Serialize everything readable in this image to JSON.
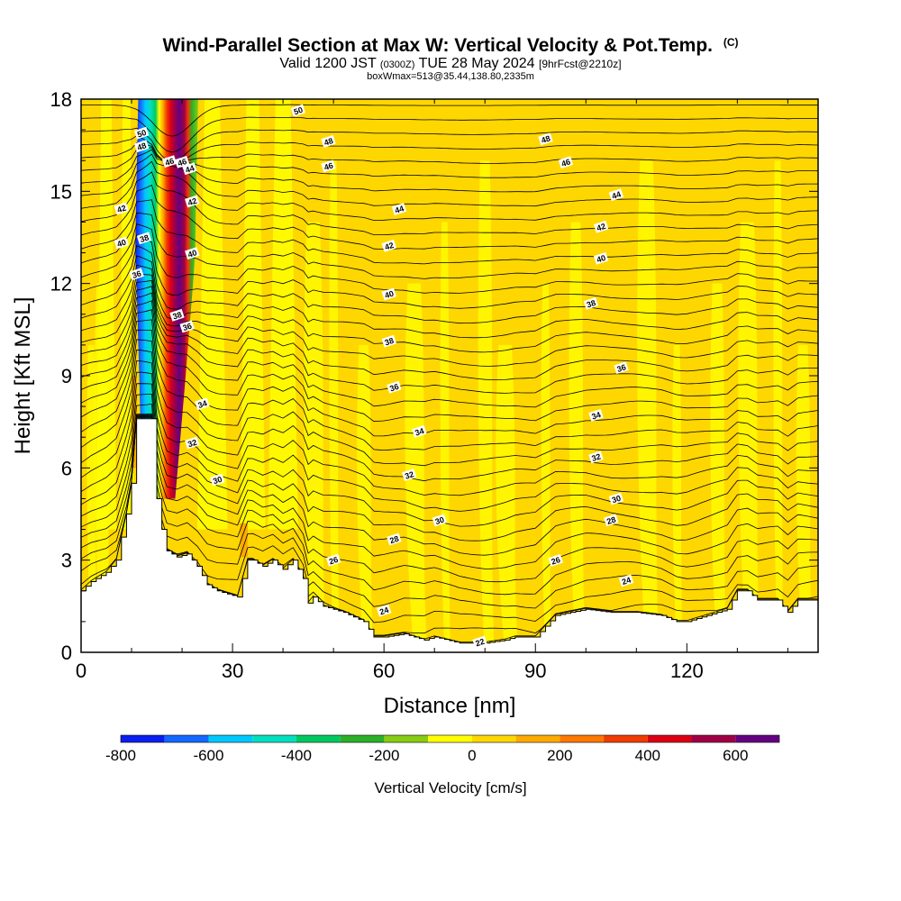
{
  "header": {
    "title_main": "Wind-Parallel Section at Max W: Vertical Velocity & Pot.Temp.",
    "title_c": "(C)",
    "valid_a": "Valid 1200 JST",
    "valid_b": "(0300Z)",
    "valid_c": "TUE 28 May 2024",
    "valid_d": "[9hrFcst@2210z]",
    "box_line": "boxWmax=513@35.44,138.80,2335m"
  },
  "chart_data": {
    "type": "heatmap",
    "xlabel": "Distance [nm]",
    "ylabel": "Height [Kft MSL]",
    "xlim": [
      0,
      146
    ],
    "ylim": [
      0,
      18
    ],
    "x_ticks": [
      0,
      30,
      60,
      90,
      120
    ],
    "y_ticks": [
      0,
      3,
      6,
      9,
      12,
      15,
      18
    ],
    "colorbar": {
      "label": "Vertical Velocity [cm/s]",
      "tick_values": [
        -800,
        -600,
        -400,
        -200,
        0,
        200,
        400,
        600
      ],
      "levels": [
        -800,
        -700,
        -600,
        -500,
        -400,
        -300,
        -200,
        -100,
        0,
        100,
        200,
        300,
        400,
        500,
        600,
        700
      ],
      "colors": [
        "#0a1ef0",
        "#1468ff",
        "#00c8ff",
        "#00e0c0",
        "#00c860",
        "#2cb028",
        "#88cc14",
        "#ffff00",
        "#ffd700",
        "#ffaa00",
        "#ff7800",
        "#f03c00",
        "#dc0014",
        "#a00046",
        "#640082"
      ]
    },
    "background_color": "#ffd700",
    "updraft_core": {
      "bottom_km_kft": 5,
      "top_kft": 18,
      "axis_points": [
        [
          17,
          5
        ],
        [
          17.8,
          9
        ],
        [
          18.3,
          12
        ],
        [
          18.6,
          15
        ],
        [
          19,
          18
        ]
      ],
      "max_w": 513
    },
    "terrain": {
      "x": [
        0,
        2,
        5,
        7,
        9,
        10.5,
        11,
        12,
        14,
        15,
        16,
        17,
        18,
        19,
        21,
        23,
        25,
        27,
        31,
        33,
        34,
        36,
        38,
        40,
        42,
        44,
        45,
        46,
        48,
        52,
        56,
        58,
        60,
        64,
        68,
        70,
        75,
        80,
        84,
        86,
        88,
        90,
        94,
        100,
        105,
        110,
        115,
        118,
        120,
        124,
        128,
        130,
        132,
        134,
        138,
        140,
        142,
        146
      ],
      "y": [
        2,
        2.3,
        2.6,
        3,
        4.5,
        6,
        7.6,
        7.6,
        7.6,
        5,
        4,
        3.3,
        3.2,
        3.1,
        3.2,
        2.8,
        2.2,
        2,
        1.8,
        3.0,
        3.0,
        2.8,
        3.0,
        2.7,
        3.0,
        2.4,
        1.6,
        1.8,
        1.5,
        1.3,
        1,
        0.5,
        0.5,
        0.6,
        0.4,
        0.5,
        0.3,
        0.3,
        0.4,
        0.5,
        0.5,
        0.5,
        1.2,
        1.4,
        1.3,
        1.3,
        1.2,
        1.0,
        1.0,
        1.2,
        1.4,
        2.0,
        2.0,
        1.7,
        1.7,
        1.3,
        1.7,
        1.7
      ]
    },
    "isentropes": [
      {
        "label": "22",
        "base": 0.7,
        "label_x": 79
      },
      {
        "label": "24",
        "base": 1.9,
        "label_x": 108
      },
      {
        "label": "24",
        "base": 1.9,
        "label_x": 60
      },
      {
        "label": "26",
        "base": 2.9,
        "label_x": 94
      },
      {
        "label": "26",
        "base": 2.9,
        "label_x": 50
      },
      {
        "label": "28",
        "base": 4.0,
        "label_x": 105
      },
      {
        "label": "28",
        "base": 3.8,
        "label_x": 62
      },
      {
        "label": "30",
        "base": 4.9,
        "label_x": 106
      },
      {
        "label": "30",
        "base": 4.8,
        "label_x": 71
      },
      {
        "label": "30",
        "base": 5.0,
        "label_x": 27
      },
      {
        "label": "32",
        "base": 6.3,
        "label_x": 102
      },
      {
        "label": "32",
        "base": 6.2,
        "label_x": 65
      },
      {
        "label": "32",
        "base": 5.7,
        "label_x": 22
      },
      {
        "label": "34",
        "base": 7.6,
        "label_x": 102
      },
      {
        "label": "34",
        "base": 7.5,
        "label_x": 67
      },
      {
        "label": "34",
        "base": 7.3,
        "label_x": 24
      },
      {
        "label": "36",
        "base": 9.0,
        "label_x": 107
      },
      {
        "label": "36",
        "base": 8.8,
        "label_x": 62
      },
      {
        "label": "36",
        "base": 9.7,
        "label_x": 11
      },
      {
        "label": "36",
        "base": 9.8,
        "label_x": 21
      },
      {
        "label": "38",
        "base": 11.2,
        "label_x": 101
      },
      {
        "label": "38",
        "base": 10.2,
        "label_x": 61
      },
      {
        "label": "38",
        "base": 11.5,
        "label_x": 12.5
      },
      {
        "label": "38",
        "base": 10.8,
        "label_x": 19
      },
      {
        "label": "40",
        "base": 12.8,
        "label_x": 103
      },
      {
        "label": "40",
        "base": 11.8,
        "label_x": 61
      },
      {
        "label": "40",
        "base": 12.5,
        "label_x": 8
      },
      {
        "label": "40",
        "base": 12.5,
        "label_x": 22
      },
      {
        "label": "42",
        "base": 13.8,
        "label_x": 103
      },
      {
        "label": "42",
        "base": 13.4,
        "label_x": 61
      },
      {
        "label": "42",
        "base": 13.8,
        "label_x": 8
      },
      {
        "label": "42",
        "base": 13.8,
        "label_x": 22
      },
      {
        "label": "44",
        "base": 14.8,
        "label_x": 106
      },
      {
        "label": "44",
        "base": 14.5,
        "label_x": 63
      },
      {
        "label": "44",
        "base": 15.0,
        "label_x": 21.5
      },
      {
        "label": "46",
        "base": 15.8,
        "label_x": 49
      },
      {
        "label": "46",
        "base": 15.9,
        "label_x": 96
      },
      {
        "label": "46",
        "base": 15.6,
        "label_x": 17.5
      },
      {
        "label": "46",
        "base": 15.5,
        "label_x": 20
      },
      {
        "label": "48",
        "base": 16.6,
        "label_x": 49
      },
      {
        "label": "48",
        "base": 16.7,
        "label_x": 92
      },
      {
        "label": "48",
        "base": 15.8,
        "label_x": 12
      },
      {
        "label": "50",
        "base": 17.6,
        "label_x": 43
      },
      {
        "label": "50",
        "base": 16.8,
        "label_x": 12
      }
    ]
  }
}
